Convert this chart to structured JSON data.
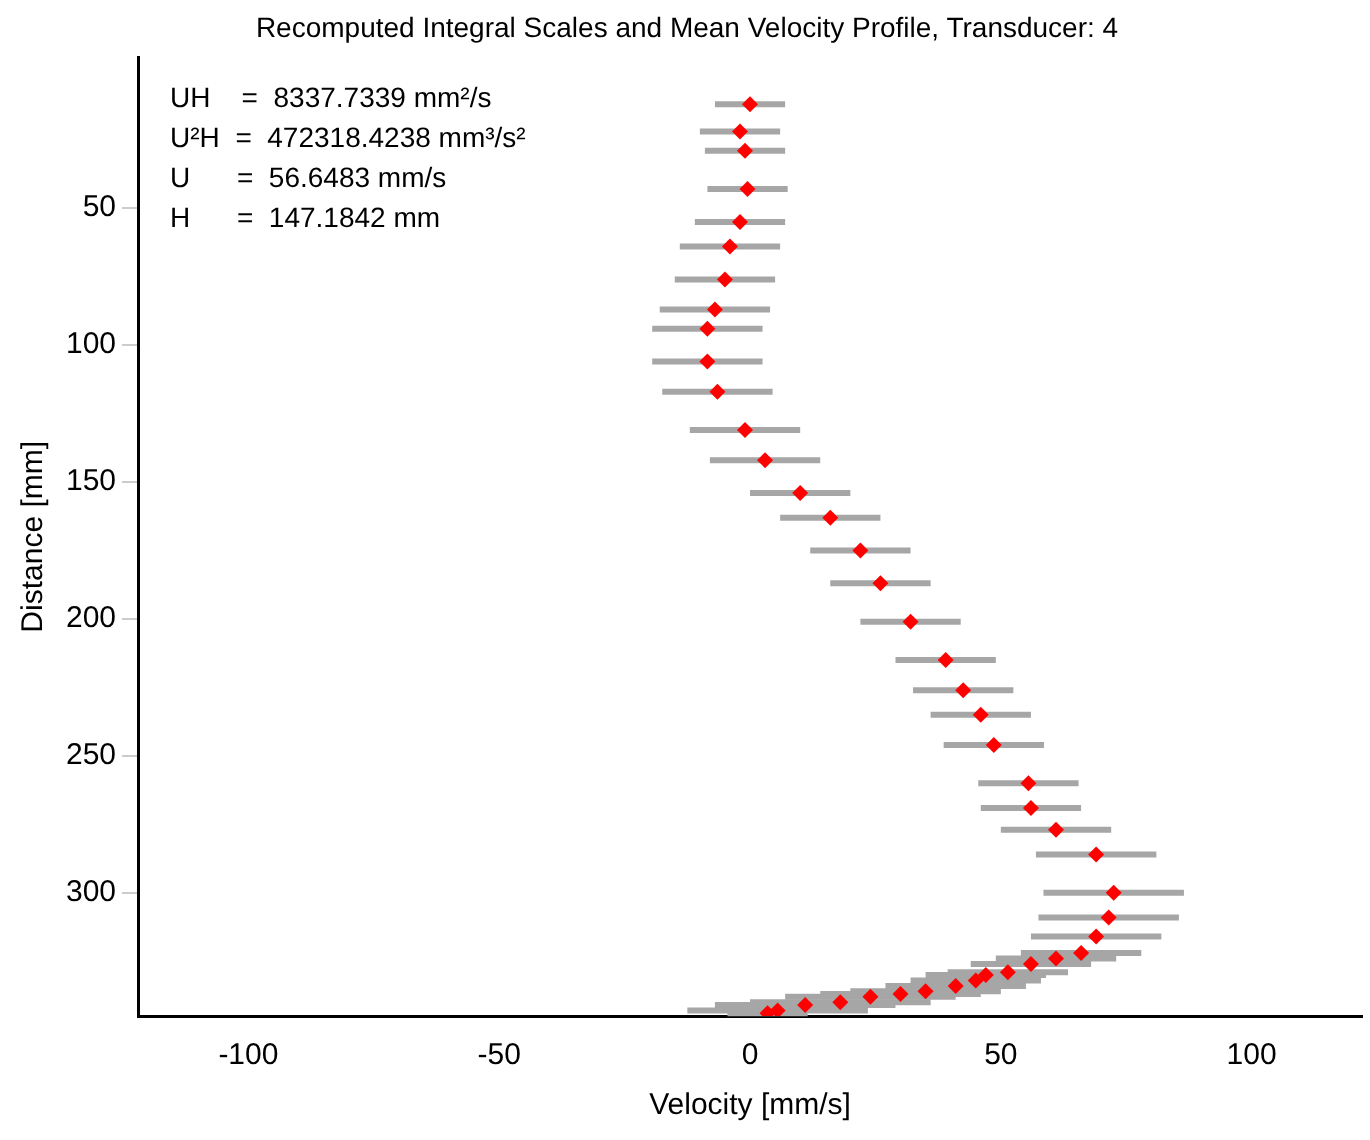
{
  "chart_data": {
    "type": "scatter",
    "title": "Recomputed Integral Scales and Mean Velocity Profile, Transducer: 4",
    "xlabel": "Velocity [mm/s]",
    "ylabel": "Distance [mm]",
    "annotations": [
      "UH    =  8337.7339 mm²/s",
      "U²H  =  472318.4238 mm³/s²",
      "U      =  56.6483 mm/s",
      "H      =  147.1842 mm"
    ],
    "xlim": [
      -122,
      122
    ],
    "xticks": [
      -100,
      -50,
      0,
      50,
      100
    ],
    "ylim": [
      345,
      -5
    ],
    "yticks": [
      50,
      100,
      150,
      200,
      250,
      300
    ],
    "grid": false,
    "legend": false,
    "marker": "diamond",
    "series": [
      {
        "color": "#ff0000",
        "x": [
          0,
          -2,
          -1,
          -0.5,
          -2,
          -4,
          -5,
          -7,
          -8.5,
          -8.5,
          -6.5,
          -1,
          3,
          10,
          16,
          22,
          26,
          32,
          39,
          42.5,
          46,
          48.6,
          55.5,
          56,
          61,
          69,
          72.5,
          71.5,
          69,
          66,
          61,
          56,
          51.4,
          47,
          45,
          41,
          35,
          30,
          24,
          18,
          11,
          5.5,
          3.5
        ],
        "values": [
          12,
          22,
          29,
          43,
          55,
          64,
          76,
          87,
          94,
          106,
          117,
          131,
          142,
          154,
          163,
          175,
          187,
          201,
          215,
          226,
          235,
          246,
          260,
          269,
          277,
          286,
          300,
          309,
          316,
          322,
          324,
          326,
          329,
          330,
          332,
          334,
          336,
          337,
          338,
          340,
          341,
          343,
          344
        ],
        "xerrors": [
          7,
          8,
          8,
          8,
          9,
          10,
          10,
          11,
          11,
          11,
          11,
          11,
          11,
          10,
          10,
          10,
          10,
          10,
          10,
          10,
          10,
          10,
          10,
          10,
          11,
          12,
          14,
          14,
          13,
          12,
          12,
          12,
          12,
          12,
          13,
          14,
          15,
          16,
          17,
          18,
          18,
          18,
          8
        ]
      }
    ]
  }
}
